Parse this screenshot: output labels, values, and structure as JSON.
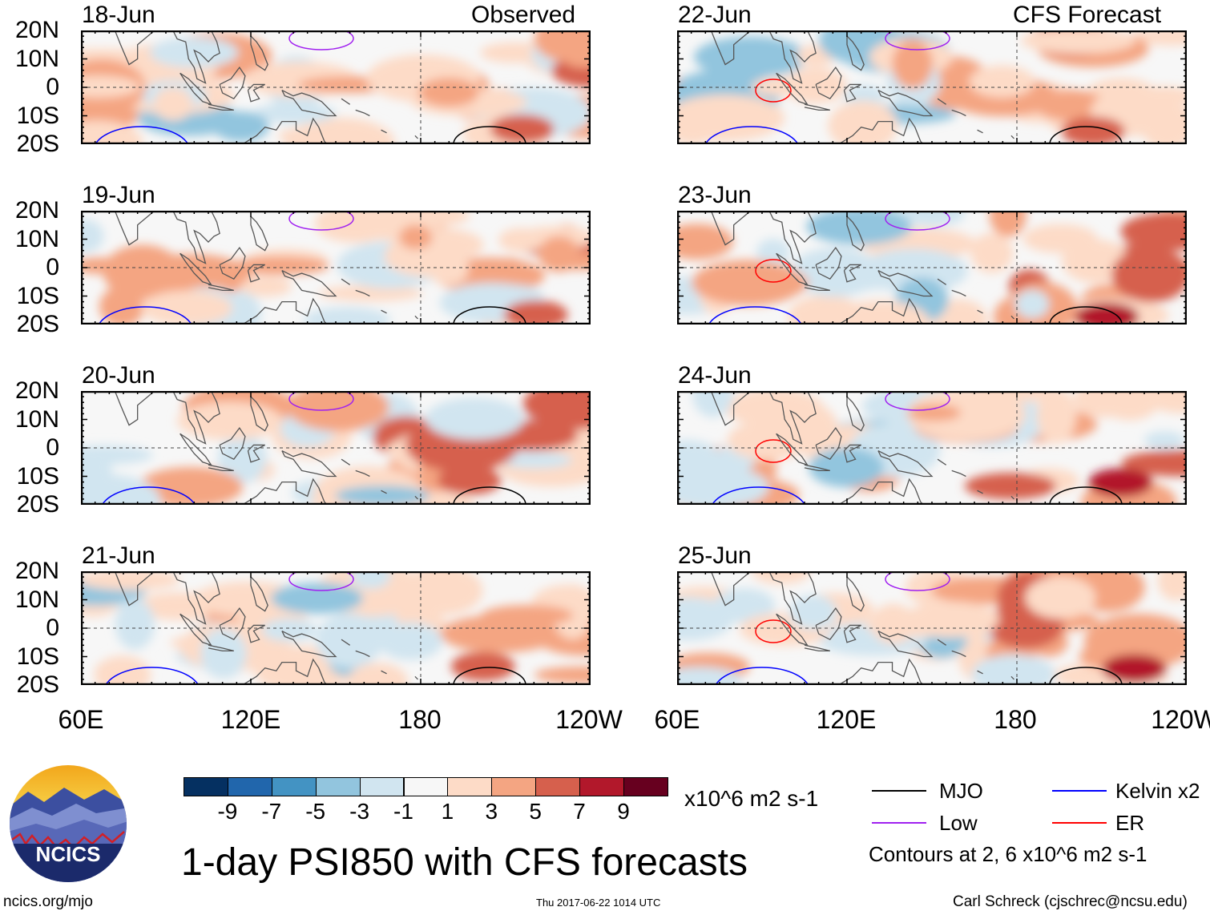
{
  "header": {
    "left_label": "Observed",
    "right_label": "CFS Forecast"
  },
  "panels": {
    "observed": [
      {
        "date": "18-Jun"
      },
      {
        "date": "19-Jun"
      },
      {
        "date": "20-Jun"
      },
      {
        "date": "21-Jun"
      }
    ],
    "forecast": [
      {
        "date": "22-Jun"
      },
      {
        "date": "23-Jun"
      },
      {
        "date": "24-Jun"
      },
      {
        "date": "25-Jun"
      }
    ]
  },
  "axes": {
    "lat_labels": [
      "20N",
      "10N",
      "0",
      "10S",
      "20S"
    ],
    "lon_labels": [
      "60E",
      "120E",
      "180",
      "120W"
    ]
  },
  "colorbar": {
    "colors": [
      "#053061",
      "#2166ac",
      "#4393c3",
      "#92c5de",
      "#d1e5f0",
      "#f7f7f7",
      "#fddbc7",
      "#f4a582",
      "#d6604d",
      "#b2182b",
      "#67001f"
    ],
    "labels": [
      "-9",
      "-7",
      "-5",
      "-3",
      "-1",
      "1",
      "3",
      "5",
      "7",
      "9"
    ],
    "units": "x10^6 m2 s-1"
  },
  "legend": {
    "items": [
      {
        "label": "MJO",
        "color": "#000000"
      },
      {
        "label": "Kelvin x2",
        "color": "#0000ff"
      },
      {
        "label": "Low",
        "color": "#a020f0"
      },
      {
        "label": "ER",
        "color": "#ff0000"
      }
    ],
    "note": "Contours at 2, 6 x10^6 m2 s-1"
  },
  "title": "1-day PSI850 with CFS forecasts",
  "logo": {
    "text": "NCICS"
  },
  "footer": {
    "url": "ncics.org/mjo",
    "timestamp": "Thu 2017-06-22 1014 UTC",
    "credit": "Carl Schreck (cjschrec@ncsu.edu)"
  }
}
